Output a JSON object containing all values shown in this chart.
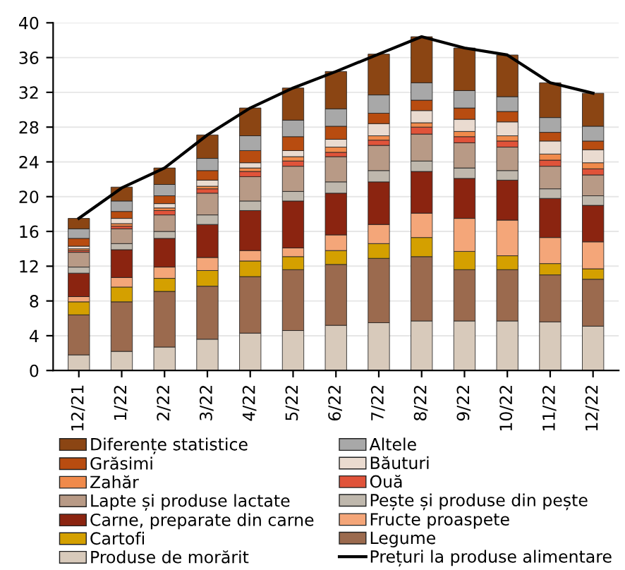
{
  "chart_data": {
    "type": "bar",
    "stacked": true,
    "categories": [
      "12/21",
      "1/22",
      "2/22",
      "3/22",
      "4/22",
      "5/22",
      "6/22",
      "7/22",
      "8/22",
      "9/22",
      "10/22",
      "11/22",
      "12/22"
    ],
    "ylim": [
      0,
      40
    ],
    "yticks": [
      0,
      4,
      8,
      12,
      16,
      20,
      24,
      28,
      32,
      36,
      40
    ],
    "grid": "y",
    "legend": "bottom",
    "series": [
      {
        "name": "Produse de morărit",
        "color": "#d8cabb",
        "values": [
          1.8,
          2.2,
          2.7,
          3.6,
          4.3,
          4.6,
          5.2,
          5.5,
          5.7,
          5.7,
          5.7,
          5.6,
          5.1
        ]
      },
      {
        "name": "Legume",
        "color": "#9b6a4e",
        "values": [
          4.6,
          5.7,
          6.4,
          6.1,
          6.5,
          7.0,
          7.0,
          7.4,
          7.4,
          5.9,
          5.9,
          5.4,
          5.4
        ]
      },
      {
        "name": "Cartofi",
        "color": "#d4a000",
        "values": [
          1.5,
          1.7,
          1.5,
          1.8,
          1.8,
          1.5,
          1.6,
          1.7,
          2.2,
          2.1,
          1.6,
          1.3,
          1.2
        ]
      },
      {
        "name": "Fructe proaspete",
        "color": "#f4a679",
        "values": [
          0.6,
          1.1,
          1.3,
          1.5,
          1.2,
          1.0,
          1.8,
          2.2,
          2.8,
          3.8,
          4.1,
          3.0,
          3.1
        ]
      },
      {
        "name": "Carne, preparate din carne",
        "color": "#8b2410",
        "values": [
          2.7,
          3.2,
          3.3,
          3.8,
          4.6,
          5.4,
          4.8,
          4.9,
          4.8,
          4.6,
          4.6,
          4.5,
          4.2
        ]
      },
      {
        "name": "Pește și produse din pește",
        "color": "#bfb8ad",
        "values": [
          0.7,
          0.7,
          0.8,
          1.1,
          1.1,
          1.1,
          1.3,
          1.3,
          1.2,
          1.2,
          1.1,
          1.1,
          1.1
        ]
      },
      {
        "name": "Lapte și produse lactate",
        "color": "#b89a86",
        "values": [
          1.7,
          1.7,
          1.9,
          2.5,
          2.8,
          2.9,
          2.9,
          2.9,
          3.1,
          2.9,
          2.7,
          2.6,
          2.4
        ]
      },
      {
        "name": "Ouă",
        "color": "#e0533a",
        "values": [
          0.2,
          0.3,
          0.5,
          0.5,
          0.6,
          0.6,
          0.5,
          0.6,
          0.8,
          0.7,
          0.7,
          0.7,
          0.7
        ]
      },
      {
        "name": "Zahăr",
        "color": "#f08a4b",
        "values": [
          0.2,
          0.3,
          0.3,
          0.3,
          0.4,
          0.5,
          0.6,
          0.5,
          0.5,
          0.6,
          0.6,
          0.7,
          0.7
        ]
      },
      {
        "name": "Băuturi",
        "color": "#eadbd0",
        "values": [
          0.3,
          0.6,
          0.5,
          0.7,
          0.6,
          0.7,
          0.9,
          1.4,
          1.4,
          1.4,
          1.6,
          1.5,
          1.5
        ]
      },
      {
        "name": "Grăsimi",
        "color": "#b84c10",
        "values": [
          0.9,
          0.8,
          0.9,
          1.1,
          1.4,
          1.6,
          1.5,
          1.2,
          1.2,
          1.3,
          1.2,
          1.0,
          1.0
        ]
      },
      {
        "name": "Altele",
        "color": "#a8a8a8",
        "values": [
          1.1,
          1.2,
          1.3,
          1.4,
          1.7,
          1.9,
          2.0,
          2.1,
          2.0,
          2.0,
          1.7,
          1.7,
          1.7
        ]
      },
      {
        "name": "Diferențe statistice",
        "color": "#8b4513",
        "values": [
          1.2,
          1.6,
          1.9,
          2.7,
          3.2,
          3.7,
          4.3,
          4.7,
          5.3,
          4.9,
          4.8,
          4.0,
          3.8
        ]
      },
      {
        "name": "Prețuri la produse alimentare",
        "type": "line",
        "color": "#000000",
        "values": [
          17.5,
          21.0,
          23.3,
          27.1,
          30.2,
          32.5,
          34.4,
          36.4,
          38.4,
          37.1,
          36.3,
          33.1,
          31.9
        ]
      }
    ]
  }
}
